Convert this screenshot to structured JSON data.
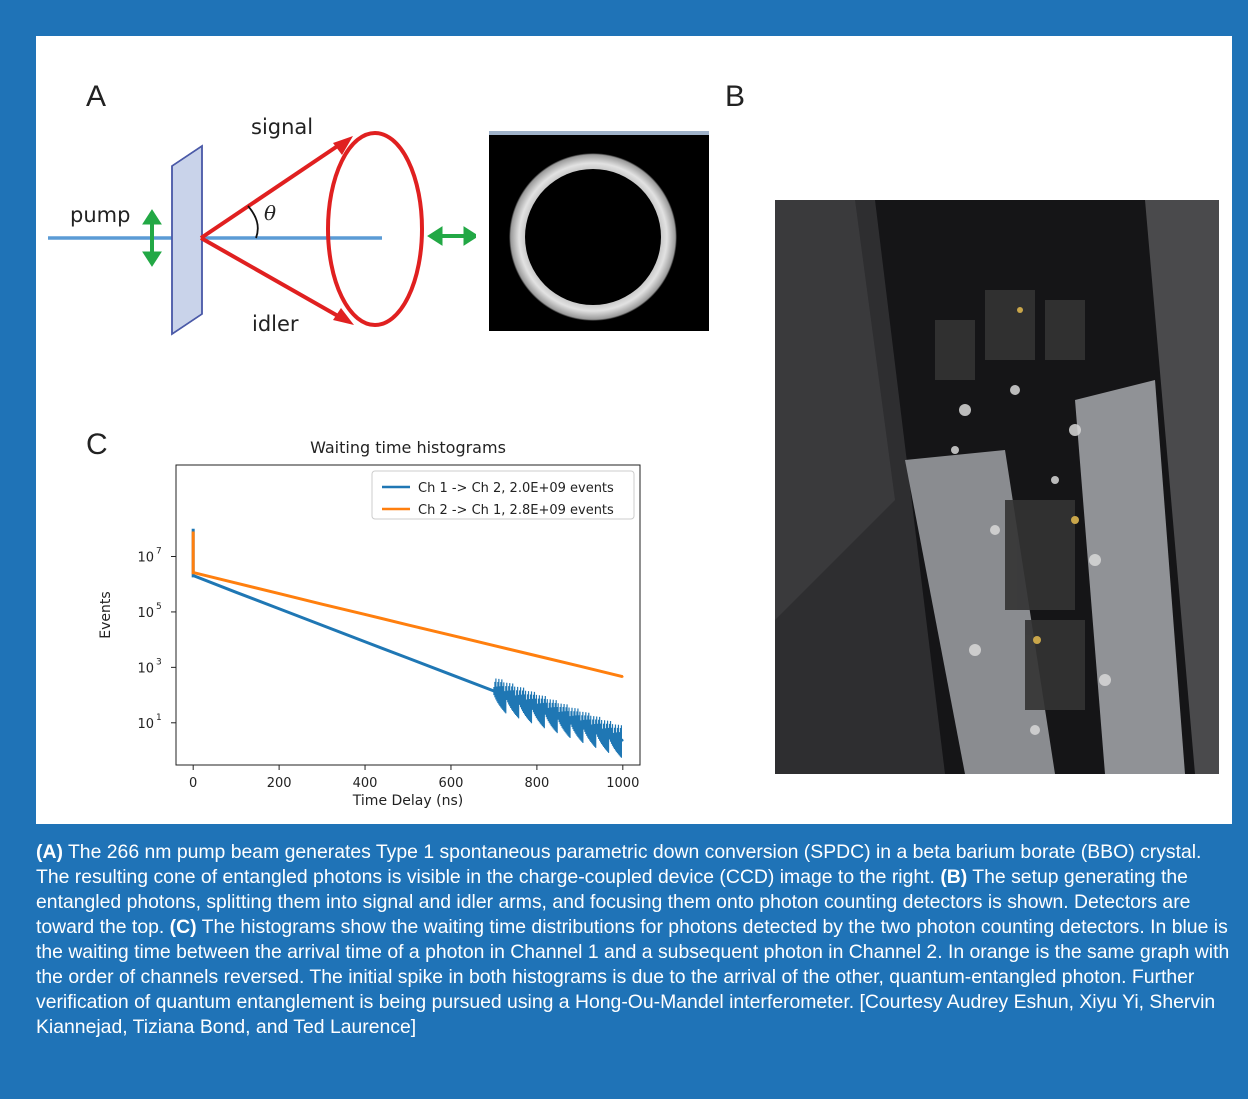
{
  "panels": {
    "a_label": "A",
    "b_label": "B",
    "c_label": "C"
  },
  "diagram": {
    "label_pump": "pump",
    "label_signal": "signal",
    "label_idler": "idler",
    "label_theta": "θ",
    "colors": {
      "beam": "#5b9bd5",
      "cone": "#e02020",
      "polarization": "#22a845",
      "crystal": "#c9d3ea"
    }
  },
  "chart_data": {
    "type": "line",
    "title": "Waiting time histograms",
    "xlabel": "Time Delay (ns)",
    "ylabel": "Events",
    "xlim": [
      -40,
      1040
    ],
    "ylim": [
      0.3,
      20000000000
    ],
    "y_scale": "log",
    "x_ticks": [
      0,
      200,
      400,
      600,
      800,
      1000
    ],
    "x_tick_labels": [
      "0",
      "200",
      "400",
      "600",
      "800",
      "1000"
    ],
    "y_ticks": [
      10,
      1000,
      100000,
      10000000
    ],
    "y_tick_labels": [
      {
        "base": "10",
        "exp": "1"
      },
      {
        "base": "10",
        "exp": "3"
      },
      {
        "base": "10",
        "exp": "5"
      },
      {
        "base": "10",
        "exp": "7"
      }
    ],
    "legend_position": "top-right",
    "series": [
      {
        "name": "Ch 1 -> Ch 2, 2.0E+09 events",
        "color": "#1f77b4",
        "spike": [
          [
            0,
            100000000
          ],
          [
            0,
            2000000
          ]
        ],
        "x": [
          2,
          100,
          200,
          300,
          400,
          500,
          600,
          700,
          800,
          900,
          1000
        ],
        "y": [
          2000000,
          510000,
          130000,
          33000,
          8400,
          2150,
          550,
          140,
          36,
          9,
          2.3
        ]
      },
      {
        "name": "Ch 2 -> Ch 1, 2.8E+09 events",
        "color": "#ff7f0e",
        "spike": [
          [
            0,
            80000000
          ],
          [
            0,
            2600000
          ]
        ],
        "x": [
          2,
          100,
          200,
          300,
          400,
          500,
          600,
          700,
          800,
          900,
          1000
        ],
        "y": [
          2600000,
          1100000,
          460000,
          190000,
          81000,
          34000,
          14500,
          6100,
          2600,
          1100,
          460
        ]
      }
    ]
  },
  "caption": {
    "a_tag": "(A)",
    "a_text": " The 266 nm pump beam generates Type 1 spontaneous parametric down conversion (SPDC) in a beta barium borate (BBO) crystal. The resulting cone of entangled photons is visible in the charge-coupled device (CCD) image to the right. ",
    "b_tag": "(B)",
    "b_text": " The setup generating the entangled photons, splitting them into signal and idler arms, and focusing them onto photon counting detectors is shown. Detectors are toward the top. ",
    "c_tag": "(C)",
    "c_text": " The histograms show the waiting time distributions for photons detected by the two photon counting detectors. In blue is the waiting time between the arrival time of a photon in Channel 1 and a subsequent photon in Channel 2. In orange is the same graph with the order of channels reversed. The initial spike in both histograms is due to the arrival of the other, quantum-entangled photon. Further verification of quantum entanglement is being pursued using a Hong-Ou-Mandel interferometer. [Courtesy Audrey Eshun, Xiyu Yi, Shervin Kiannejad, Tiziana Bond, and Ted Laurence]"
  }
}
